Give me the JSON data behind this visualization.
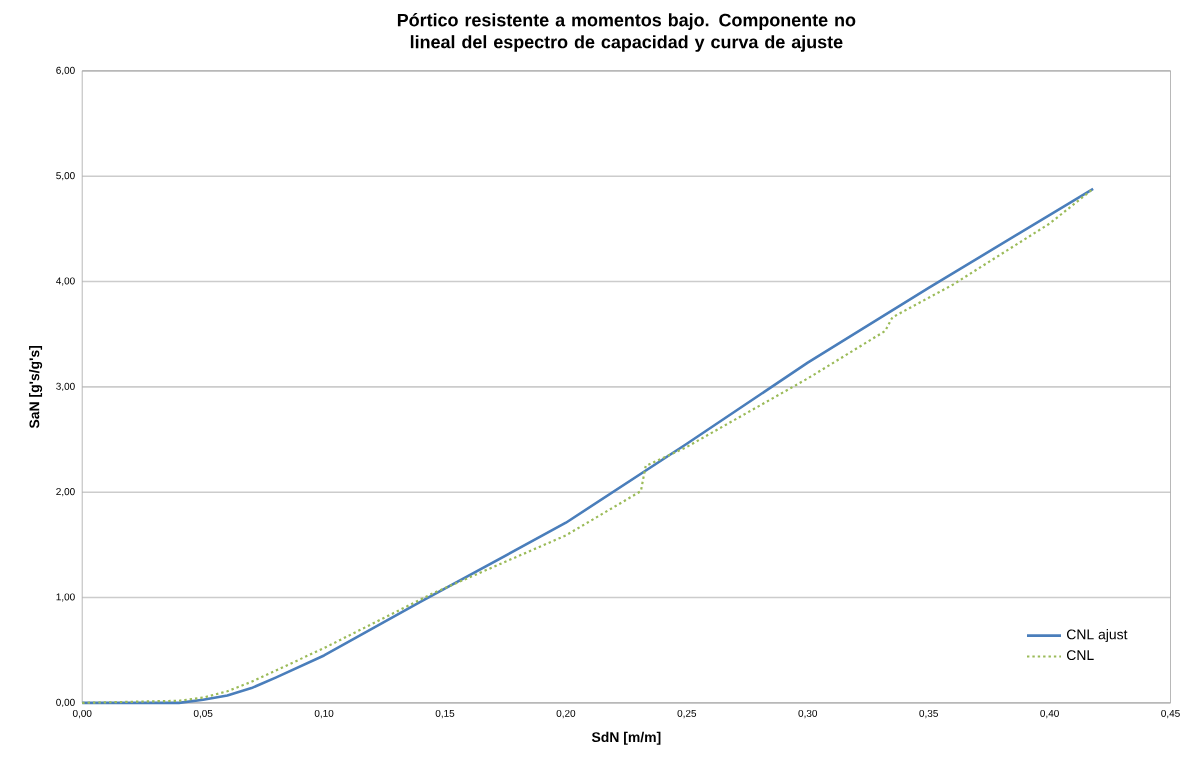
{
  "chart_data": {
    "type": "line",
    "title": "Pórtico resistente a momentos bajo. Componente no lineal del espectro de capacidad y curva de ajuste",
    "xlabel": "SdN [m/m]",
    "ylabel": "SaN [g's/g's]",
    "xlim": [
      0,
      0.45
    ],
    "ylim": [
      0,
      6
    ],
    "xticks": [
      {
        "value": 0,
        "label": "0,00"
      },
      {
        "value": 0.05,
        "label": "0,05"
      },
      {
        "value": 0.1,
        "label": "0,10"
      },
      {
        "value": 0.15,
        "label": "0,15"
      },
      {
        "value": 0.2,
        "label": "0,20"
      },
      {
        "value": 0.25,
        "label": "0,25"
      },
      {
        "value": 0.3,
        "label": "0,30"
      },
      {
        "value": 0.35,
        "label": "0,35"
      },
      {
        "value": 0.4,
        "label": "0,40"
      },
      {
        "value": 0.45,
        "label": "0,45"
      }
    ],
    "yticks": [
      {
        "value": 0,
        "label": "0,00"
      },
      {
        "value": 1,
        "label": "1,00"
      },
      {
        "value": 2,
        "label": "2,00"
      },
      {
        "value": 3,
        "label": "3,00"
      },
      {
        "value": 4,
        "label": "4,00"
      },
      {
        "value": 5,
        "label": "5,00"
      },
      {
        "value": 6,
        "label": "6,00"
      }
    ],
    "grid": "y",
    "legend": "bottom right",
    "marker": "none",
    "series": [
      {
        "name": "CNL ajust",
        "color": "#4a7ebb",
        "line_style": "solid",
        "x": [
          0,
          0.04,
          0.05,
          0.06,
          0.07,
          0.08,
          0.1,
          0.14,
          0.2,
          0.25,
          0.3,
          0.35,
          0.418
        ],
        "values": [
          0,
          0,
          0.03,
          0.07,
          0.14,
          0.24,
          0.45,
          0.96,
          1.71,
          2.46,
          3.23,
          3.94,
          4.88
        ]
      },
      {
        "name": "CNL",
        "color": "#9bbb59",
        "line_style": "dotted",
        "x": [
          0,
          0.04,
          0.05,
          0.06,
          0.07,
          0.1,
          0.145,
          0.2,
          0.231,
          0.233,
          0.25,
          0.3,
          0.332,
          0.335,
          0.36,
          0.4,
          0.418
        ],
        "values": [
          0,
          0.02,
          0.05,
          0.11,
          0.2,
          0.52,
          1.04,
          1.59,
          2.01,
          2.25,
          2.43,
          3.08,
          3.53,
          3.66,
          3.97,
          4.55,
          4.88
        ]
      }
    ]
  }
}
